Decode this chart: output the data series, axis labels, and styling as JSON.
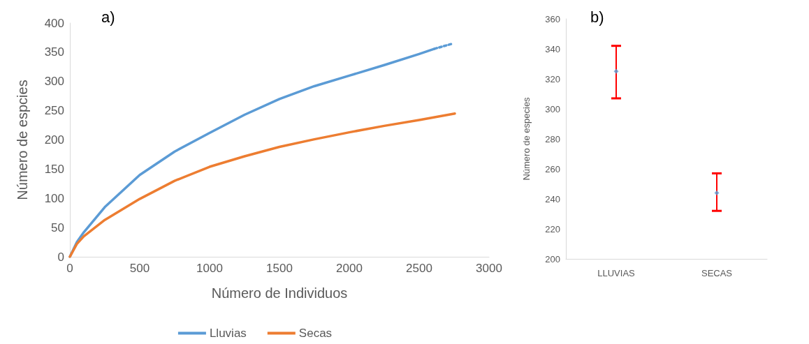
{
  "chart_data": [
    {
      "type": "line",
      "title": "a)",
      "xlabel": "Número de Individuos",
      "ylabel": "Número de espcies",
      "xlim": [
        0,
        3000
      ],
      "xticks": [
        0,
        500,
        1000,
        1500,
        2000,
        2500,
        3000
      ],
      "ylim": [
        0,
        400
      ],
      "yticks": [
        0,
        50,
        100,
        150,
        200,
        250,
        300,
        350,
        400
      ],
      "legend": "bottom",
      "series": [
        {
          "name": "Lluvias",
          "color": "#5b9bd5",
          "x": [
            0,
            50,
            100,
            250,
            500,
            750,
            1000,
            1250,
            1500,
            1750,
            2000,
            2250,
            2500,
            2610
          ],
          "values": [
            0,
            25,
            42,
            85,
            140,
            180,
            212,
            243,
            270,
            292,
            310,
            328,
            347,
            356
          ]
        },
        {
          "color": "#5b9bd5",
          "line_style": "dotted",
          "x": [
            2610,
            2743
          ],
          "values": [
            356,
            365
          ]
        },
        {
          "name": "Secas",
          "color": "#ed7d31",
          "x": [
            0,
            50,
            100,
            250,
            500,
            750,
            1000,
            1250,
            1500,
            1750,
            2000,
            2250,
            2500,
            2755
          ],
          "values": [
            0,
            22,
            35,
            63,
            99,
            130,
            154,
            172,
            188,
            201,
            213,
            224,
            234,
            245
          ]
        }
      ]
    },
    {
      "type": "scatter",
      "title": "b)",
      "ylabel": "Número de especies",
      "categories": [
        "LLUVIAS",
        "SECAS"
      ],
      "ylim": [
        200,
        360
      ],
      "yticks": [
        200,
        220,
        240,
        260,
        280,
        300,
        320,
        340,
        360
      ],
      "marker": "diamond",
      "series": [
        {
          "color": "#5b9bd5",
          "values": [
            325,
            244
          ],
          "errors": [
            [
              307,
              342
            ],
            [
              232,
              257
            ]
          ]
        }
      ]
    }
  ]
}
